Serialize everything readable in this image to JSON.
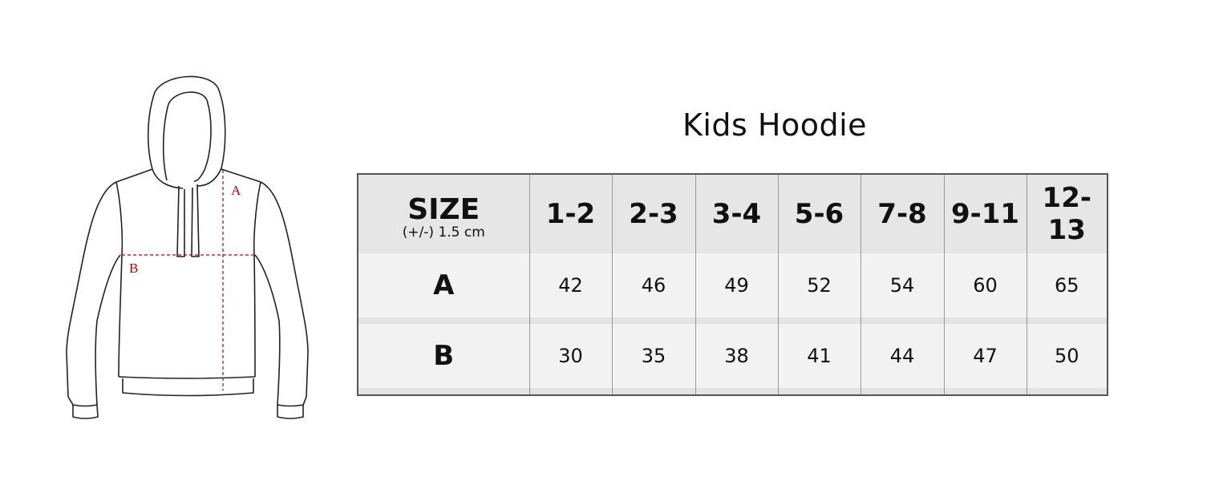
{
  "title": "Kids Hoodie",
  "diagram": {
    "labels": {
      "a": "A",
      "b": "B"
    },
    "line_color": "#222222",
    "measure_color": "#c00000"
  },
  "table": {
    "size_label": "SIZE",
    "tolerance": "(+/-) 1.5 cm",
    "sizes": [
      "1-2",
      "2-3",
      "3-4",
      "5-6",
      "7-8",
      "9-11",
      "12-13"
    ],
    "rows": [
      {
        "label": "A",
        "values": [
          "42",
          "46",
          "49",
          "52",
          "54",
          "60",
          "65"
        ]
      },
      {
        "label": "B",
        "values": [
          "30",
          "35",
          "38",
          "41",
          "44",
          "47",
          "50"
        ]
      }
    ]
  },
  "colors": {
    "label_red": "#c00000",
    "header_bg": "#e6e6e6",
    "row_bg": "#f2f2f2"
  }
}
